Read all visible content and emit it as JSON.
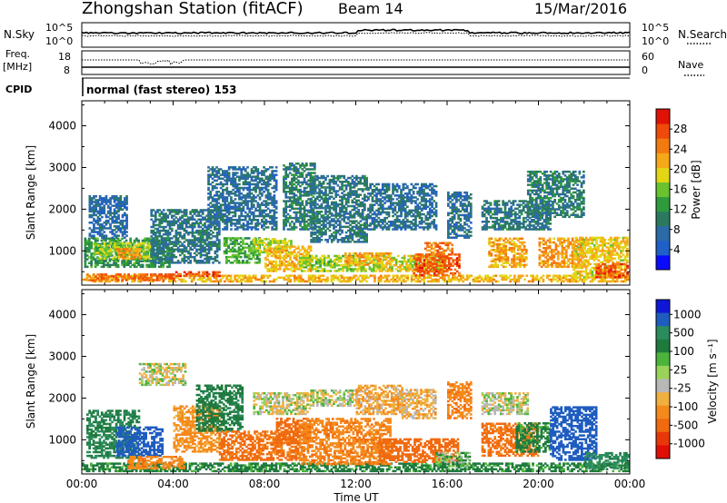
{
  "header": {
    "station": "Zhongshan Station (fitACF)",
    "beam": "Beam 14",
    "date": "15/Mar/2016"
  },
  "summary": {
    "nsky_label": "N.Sky",
    "nsky_ticks": [
      "10^5",
      "10^0"
    ],
    "nsearch_label": "N.Search",
    "freq_label_1": "Freq.",
    "freq_label_2": "[MHz]",
    "freq_ticks": [
      "18",
      "8"
    ],
    "nave_label": "Nave",
    "nave_ticks": [
      "60",
      "0"
    ],
    "cpid_label": "CPID",
    "cpid_text": "normal (fast stereo) 153"
  },
  "x_axis": {
    "label": "Time UT",
    "ticks": [
      "00:00",
      "04:00",
      "08:00",
      "12:00",
      "16:00",
      "20:00",
      "00:00"
    ]
  },
  "chart_data": [
    {
      "type": "heatmap",
      "panel": "power",
      "ylabel": "Slant Range [km]",
      "yticks": [
        1000,
        2000,
        3000,
        4000
      ],
      "ylim": [
        180,
        4600
      ],
      "xlim_hours": [
        0,
        24
      ],
      "colorbar": {
        "label": "Power [dB]",
        "ticks": [
          4,
          8,
          12,
          16,
          20,
          24,
          28
        ],
        "range": [
          0,
          32
        ],
        "colors": [
          "#0a0aff",
          "#1e5fc8",
          "#2c6aa8",
          "#2b7a60",
          "#2e9c3c",
          "#69c22e",
          "#e3d615",
          "#f5a818",
          "#f37a10",
          "#ef4a0a",
          "#e01206"
        ]
      },
      "blobs": [
        {
          "t0": 0.0,
          "t1": 24.0,
          "r0": 250,
          "r1": 420,
          "v": 21
        },
        {
          "t0": 0.2,
          "t1": 4.0,
          "r0": 280,
          "r1": 450,
          "v": 26
        },
        {
          "t0": 0.1,
          "t1": 3.8,
          "r0": 600,
          "r1": 1300,
          "v": 12
        },
        {
          "t0": 0.5,
          "t1": 3.0,
          "r0": 800,
          "r1": 1200,
          "v": 17
        },
        {
          "t0": 1.5,
          "t1": 2.5,
          "r0": 800,
          "r1": 1050,
          "v": 23
        },
        {
          "t0": 0.3,
          "t1": 2.0,
          "r0": 1300,
          "r1": 2300,
          "v": 7
        },
        {
          "t0": 3.0,
          "t1": 6.0,
          "r0": 700,
          "r1": 2000,
          "v": 9
        },
        {
          "t0": 4.0,
          "t1": 6.0,
          "r0": 380,
          "r1": 500,
          "v": 27
        },
        {
          "t0": 5.5,
          "t1": 8.5,
          "r0": 1500,
          "r1": 3000,
          "v": 8
        },
        {
          "t0": 6.2,
          "t1": 7.8,
          "r0": 700,
          "r1": 1300,
          "v": 14
        },
        {
          "t0": 7.5,
          "t1": 9.2,
          "r0": 950,
          "r1": 1300,
          "v": 18
        },
        {
          "t0": 8.0,
          "t1": 10.0,
          "r0": 500,
          "r1": 1100,
          "v": 21
        },
        {
          "t0": 8.8,
          "t1": 10.2,
          "r0": 1500,
          "r1": 3100,
          "v": 10
        },
        {
          "t0": 9.5,
          "t1": 13.0,
          "r0": 500,
          "r1": 900,
          "v": 17
        },
        {
          "t0": 10.0,
          "t1": 12.5,
          "r0": 1200,
          "r1": 2800,
          "v": 9
        },
        {
          "t0": 11.5,
          "t1": 13.5,
          "r0": 650,
          "r1": 950,
          "v": 22
        },
        {
          "t0": 12.5,
          "t1": 15.5,
          "r0": 1500,
          "r1": 2600,
          "v": 8
        },
        {
          "t0": 13.0,
          "t1": 16.0,
          "r0": 500,
          "r1": 900,
          "v": 19
        },
        {
          "t0": 14.5,
          "t1": 16.5,
          "r0": 400,
          "r1": 900,
          "v": 27
        },
        {
          "t0": 15.0,
          "t1": 16.2,
          "r0": 900,
          "r1": 1200,
          "v": 25
        },
        {
          "t0": 16.0,
          "t1": 17.0,
          "r0": 1300,
          "r1": 2400,
          "v": 8
        },
        {
          "t0": 17.5,
          "t1": 20.5,
          "r0": 1500,
          "r1": 2200,
          "v": 9
        },
        {
          "t0": 17.8,
          "t1": 19.5,
          "r0": 600,
          "r1": 1300,
          "v": 22
        },
        {
          "t0": 19.5,
          "t1": 22.0,
          "r0": 1800,
          "r1": 2900,
          "v": 10
        },
        {
          "t0": 20.0,
          "t1": 22.0,
          "r0": 600,
          "r1": 1300,
          "v": 23
        },
        {
          "t0": 21.5,
          "t1": 23.9,
          "r0": 350,
          "r1": 1300,
          "v": 20
        },
        {
          "t0": 22.5,
          "t1": 23.9,
          "r0": 350,
          "r1": 700,
          "v": 27
        }
      ]
    },
    {
      "type": "heatmap",
      "panel": "velocity",
      "ylabel": "Slant Range [km]",
      "yticks": [
        1000,
        2000,
        3000,
        4000
      ],
      "ylim": [
        180,
        4600
      ],
      "xlim_hours": [
        0,
        24
      ],
      "colorbar": {
        "label": "Velocity [m s⁻¹]",
        "ticks": [
          "1000",
          "500",
          "100",
          "25",
          "-25",
          "-100",
          "-500",
          "-1000"
        ],
        "levels": [
          1000,
          500,
          100,
          25,
          -25,
          -100,
          -500,
          -1000
        ],
        "colors": [
          "#0f17d6",
          "#1f5cc0",
          "#2b8c5d",
          "#1f7a3e",
          "#4bb53b",
          "#9ad25a",
          "#b8b8b8",
          "#f0b040",
          "#f58a1c",
          "#f06a0f",
          "#e8380a",
          "#e10d07"
        ]
      },
      "blobs": [
        {
          "t0": 0.0,
          "t1": 24.0,
          "r0": 230,
          "r1": 420,
          "v": 150
        },
        {
          "t0": 0.2,
          "t1": 2.5,
          "r0": 550,
          "r1": 1700,
          "v": 250
        },
        {
          "t0": 1.5,
          "t1": 3.5,
          "r0": 600,
          "r1": 1300,
          "v": 700
        },
        {
          "t0": 2.0,
          "t1": 4.5,
          "r0": 300,
          "r1": 600,
          "v": -200
        },
        {
          "t0": 2.5,
          "t1": 4.5,
          "r0": 2300,
          "r1": 2800,
          "v": 0
        },
        {
          "t0": 4.0,
          "t1": 6.0,
          "r0": 700,
          "r1": 1800,
          "v": -150
        },
        {
          "t0": 5.0,
          "t1": 7.0,
          "r0": 1200,
          "r1": 2300,
          "v": 200
        },
        {
          "t0": 6.0,
          "t1": 9.5,
          "r0": 500,
          "r1": 1200,
          "v": -300
        },
        {
          "t0": 7.5,
          "t1": 10.0,
          "r0": 1600,
          "r1": 2100,
          "v": 0
        },
        {
          "t0": 8.5,
          "t1": 10.0,
          "r0": 900,
          "r1": 1500,
          "v": -400
        },
        {
          "t0": 9.5,
          "t1": 13.5,
          "r0": 400,
          "r1": 1500,
          "v": -200
        },
        {
          "t0": 10.0,
          "t1": 12.0,
          "r0": 1800,
          "r1": 2200,
          "v": 10
        },
        {
          "t0": 12.0,
          "t1": 14.0,
          "r0": 1600,
          "r1": 2300,
          "v": -80
        },
        {
          "t0": 13.0,
          "t1": 16.5,
          "r0": 450,
          "r1": 1000,
          "v": -400
        },
        {
          "t0": 14.0,
          "t1": 15.5,
          "r0": 1500,
          "r1": 2200,
          "v": -60
        },
        {
          "t0": 15.5,
          "t1": 17.0,
          "r0": 350,
          "r1": 700,
          "v": 80
        },
        {
          "t0": 16.0,
          "t1": 17.0,
          "r0": 1500,
          "r1": 2400,
          "v": -200
        },
        {
          "t0": 17.5,
          "t1": 19.5,
          "r0": 1600,
          "r1": 2100,
          "v": 0
        },
        {
          "t0": 17.5,
          "t1": 20.0,
          "r0": 600,
          "r1": 1400,
          "v": -300
        },
        {
          "t0": 19.0,
          "t1": 20.5,
          "r0": 700,
          "r1": 1400,
          "v": 150
        },
        {
          "t0": 20.5,
          "t1": 22.5,
          "r0": 500,
          "r1": 1800,
          "v": 700
        },
        {
          "t0": 22.0,
          "t1": 23.9,
          "r0": 300,
          "r1": 700,
          "v": 300
        }
      ]
    }
  ]
}
